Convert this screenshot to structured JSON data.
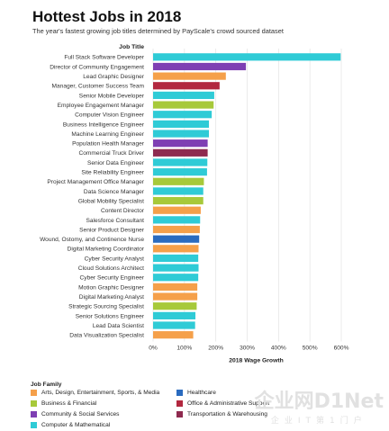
{
  "header": {
    "title": "Hottest Jobs in 2018",
    "subtitle": "The year's fastest growing job titles determined by PayScale's crowd sourced dataset"
  },
  "chart_data": {
    "type": "bar",
    "orientation": "horizontal",
    "ycolumn_label": "Job Title",
    "xlabel": "2018 Wage Growth",
    "xlim": [
      0,
      600
    ],
    "xticks": [
      "0%",
      "100%",
      "200%",
      "300%",
      "400%",
      "500%",
      "600%"
    ],
    "grid": true,
    "categories": [
      "Full Stack Software Developer",
      "Director of Community Engagement",
      "Lead Graphic Designer",
      "Manager, Customer Success Team",
      "Senior Mobile Developer",
      "Employee Engagement Manager",
      "Computer Vision Engineer",
      "Business Intelligence Engineer",
      "Machine Learning Engineer",
      "Population Health Manager",
      "Commercial Truck Driver",
      "Senior Data Engineer",
      "Site Reliability Engineer",
      "Project Management Office Manager",
      "Data Science Manager",
      "Global Mobility Specialist",
      "Content Director",
      "Salesforce Consultant",
      "Senior Product Designer",
      "Wound, Ostomy, and Continence Nurse",
      "Digital Marketing Coordinator",
      "Cyber Security Analyst",
      "Cloud Solutions Architect",
      "Cyber Security Engineer",
      "Motion Graphic Designer",
      "Digital Marketing Analyst",
      "Strategic Sourcing Specialist",
      "Senior Solutions Engineer",
      "Lead Data Scientist",
      "Data Visualization Specialist"
    ],
    "values": [
      598,
      296,
      232,
      212,
      195,
      193,
      187,
      178,
      178,
      174,
      174,
      173,
      172,
      162,
      160,
      160,
      152,
      150,
      149,
      147,
      145,
      144,
      145,
      144,
      141,
      141,
      139,
      135,
      134,
      128
    ],
    "families": [
      "Computer & Mathematical",
      "Community & Social Services",
      "Arts, Design, Entertainment, Sports, & Media",
      "Office & Administrative Support",
      "Computer & Mathematical",
      "Business & Financial",
      "Computer & Mathematical",
      "Computer & Mathematical",
      "Computer & Mathematical",
      "Community & Social Services",
      "Transportation & Warehousing",
      "Computer & Mathematical",
      "Computer & Mathematical",
      "Business & Financial",
      "Computer & Mathematical",
      "Business & Financial",
      "Arts, Design, Entertainment, Sports, & Media",
      "Computer & Mathematical",
      "Arts, Design, Entertainment, Sports, & Media",
      "Healthcare",
      "Arts, Design, Entertainment, Sports, & Media",
      "Computer & Mathematical",
      "Computer & Mathematical",
      "Computer & Mathematical",
      "Arts, Design, Entertainment, Sports, & Media",
      "Arts, Design, Entertainment, Sports, & Media",
      "Business & Financial",
      "Computer & Mathematical",
      "Computer & Mathematical",
      "Arts, Design, Entertainment, Sports, & Media"
    ],
    "legend_title": "Job Family",
    "legend": [
      {
        "name": "Arts, Design, Entertainment, Sports, & Media",
        "color": "#f5a04a"
      },
      {
        "name": "Healthcare",
        "color": "#2a6bbf"
      },
      {
        "name": "Business & Financial",
        "color": "#a7c93a"
      },
      {
        "name": "Office & Administrative Support",
        "color": "#b2283f"
      },
      {
        "name": "Community & Social Services",
        "color": "#7e3fb3"
      },
      {
        "name": "Transportation & Warehousing",
        "color": "#8e2a4f"
      },
      {
        "name": "Computer & Mathematical",
        "color": "#2fcbd6"
      }
    ]
  },
  "watermark": {
    "main": "企业网D1Net",
    "sub": "企业IT第1门户"
  }
}
